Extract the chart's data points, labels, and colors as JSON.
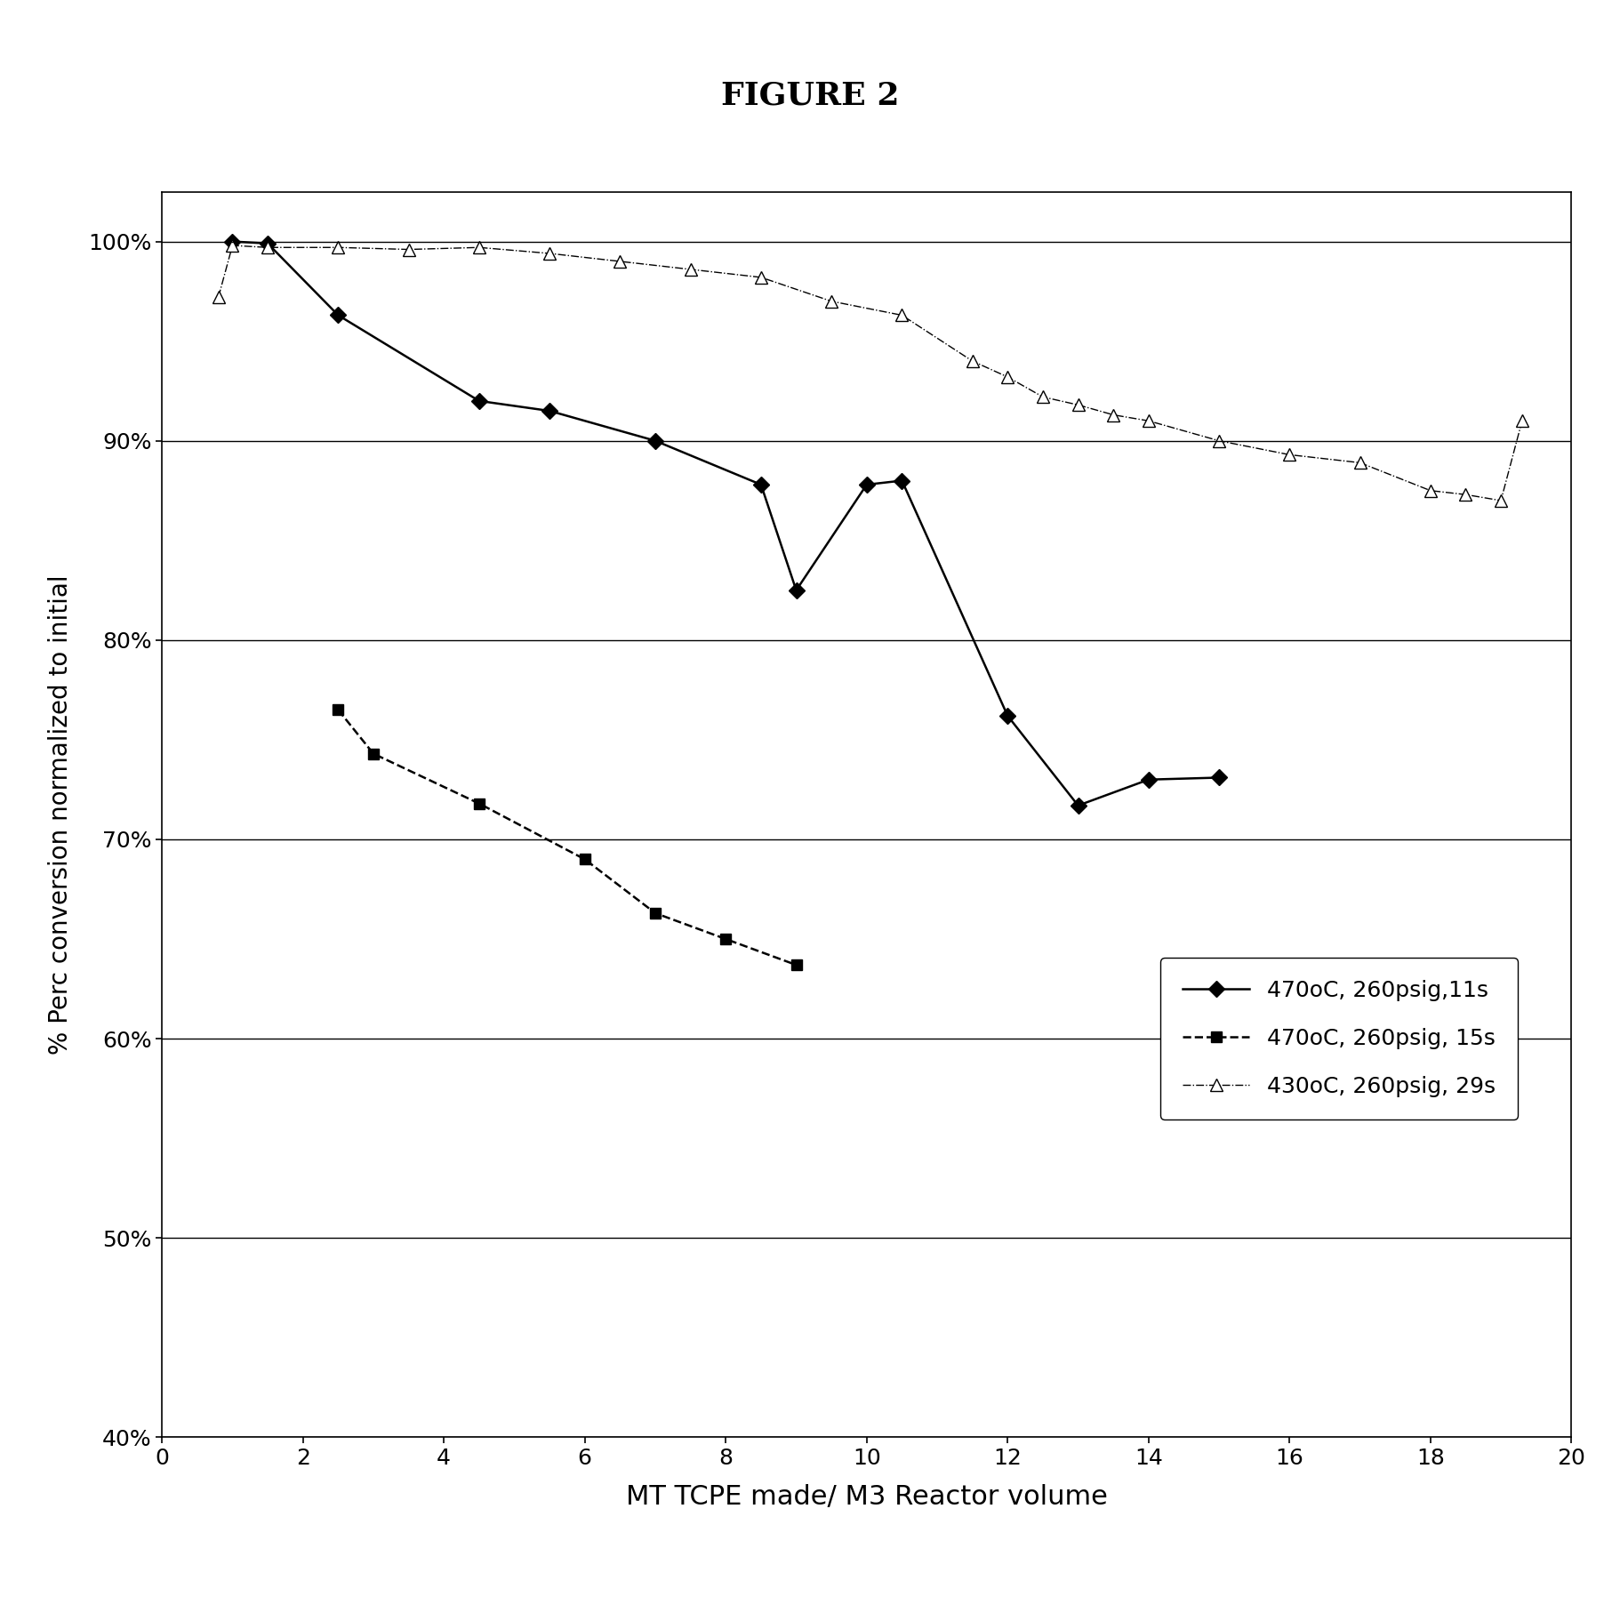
{
  "title": "FIGURE 2",
  "xlabel": "MT TCPE made/ M3 Reactor volume",
  "ylabel": "% Perc conversion normalized to initial",
  "xlim": [
    0,
    20
  ],
  "ylim": [
    0.4,
    1.025
  ],
  "yticks": [
    0.4,
    0.5,
    0.6,
    0.7,
    0.8,
    0.9,
    1.0
  ],
  "xticks": [
    0,
    2,
    4,
    6,
    8,
    10,
    12,
    14,
    16,
    18,
    20
  ],
  "series1_label": "470oC, 260psig,11s",
  "series1_x": [
    1.0,
    1.5,
    2.5,
    4.5,
    5.5,
    7.0,
    8.5,
    9.0,
    10.0,
    10.5,
    12.0,
    13.0,
    14.0,
    15.0
  ],
  "series1_y": [
    1.0,
    0.999,
    0.963,
    0.92,
    0.915,
    0.9,
    0.878,
    0.825,
    0.878,
    0.88,
    0.762,
    0.717,
    0.73,
    0.731
  ],
  "series1_color": "#000000",
  "series1_marker": "D",
  "series1_markersize": 9,
  "series1_linestyle": "-",
  "series1_linewidth": 1.8,
  "series2_label": "470oC, 260psig, 15s",
  "series2_x": [
    2.5,
    3.0,
    4.5,
    6.0,
    7.0,
    8.0,
    9.0
  ],
  "series2_y": [
    0.765,
    0.743,
    0.718,
    0.69,
    0.663,
    0.65,
    0.637
  ],
  "series2_color": "#000000",
  "series2_marker": "s",
  "series2_markersize": 9,
  "series2_linestyle": "--",
  "series2_linewidth": 1.8,
  "series3_label": "430oC, 260psig, 29s",
  "series3_x": [
    0.8,
    1.0,
    1.5,
    2.5,
    3.5,
    4.5,
    5.5,
    6.5,
    7.5,
    8.5,
    9.5,
    10.5,
    11.5,
    12.0,
    12.5,
    13.0,
    13.5,
    14.0,
    15.0,
    16.0,
    17.0,
    18.0,
    18.5,
    19.0,
    19.3
  ],
  "series3_y": [
    0.972,
    0.998,
    0.997,
    0.997,
    0.996,
    0.997,
    0.994,
    0.99,
    0.986,
    0.982,
    0.97,
    0.963,
    0.94,
    0.932,
    0.922,
    0.918,
    0.913,
    0.91,
    0.9,
    0.893,
    0.889,
    0.875,
    0.873,
    0.87,
    0.91
  ],
  "series3_color": "#000000",
  "series3_marker": "^",
  "series3_markersize": 10,
  "series3_linestyle": "-.",
  "series3_linewidth": 1.0,
  "series3_markerfacecolor": "white",
  "background_color": "#ffffff",
  "figsize": [
    18.22,
    17.96
  ],
  "dpi": 100
}
